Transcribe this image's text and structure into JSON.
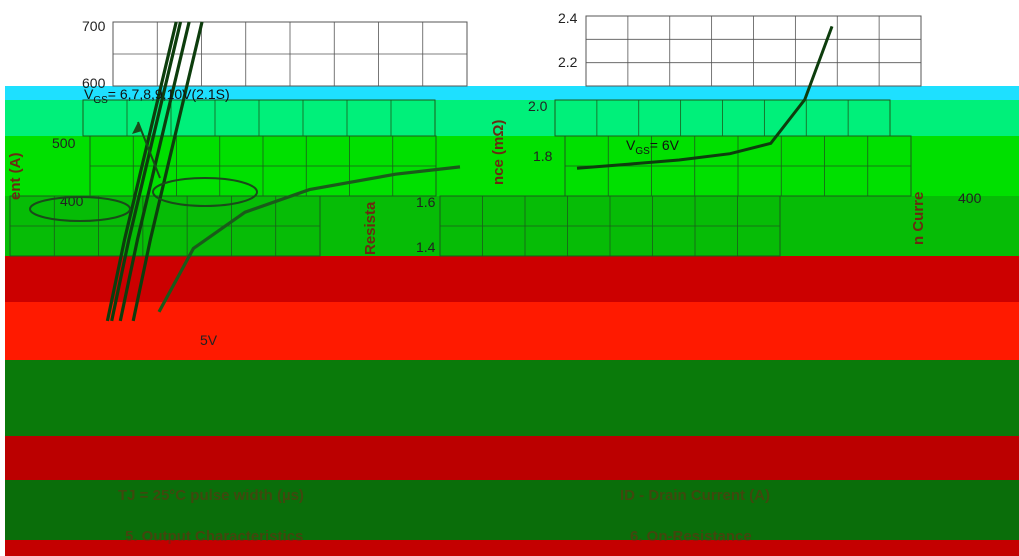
{
  "bands": [
    {
      "color": "#1ee0ff"
    },
    {
      "color": "#00f07a"
    },
    {
      "color": "#00e000"
    },
    {
      "color": "#06bc06"
    },
    {
      "color": "#cc0000"
    },
    {
      "color": "#ff1a00"
    },
    {
      "color": "#0a7a0a"
    },
    {
      "color": "#bb0000"
    },
    {
      "color": "#0a6e0a"
    },
    {
      "color": "#c40000"
    }
  ],
  "chart_data": [
    {
      "type": "line",
      "ytick_labels": [
        "700",
        "600",
        "500",
        "400"
      ],
      "yaxis_fragment": "ent (A)",
      "annotation": {
        "text_main": "V",
        "text_sub": "GS",
        "text_rest": "= 6,7,8,9,10V(2.1S)"
      },
      "xtick_fragment": "5V",
      "series": [
        {
          "x": [
            0.18,
            0.22,
            0.26,
            0.3,
            0.34
          ],
          "y": [
            390,
            480,
            560,
            640,
            720
          ]
        },
        {
          "x": [
            0.19,
            0.23,
            0.27,
            0.31,
            0.35
          ],
          "y": [
            390,
            480,
            560,
            640,
            720
          ]
        },
        {
          "x": [
            0.21,
            0.25,
            0.29,
            0.33,
            0.37
          ],
          "y": [
            390,
            480,
            560,
            640,
            720
          ]
        },
        {
          "x": [
            0.24,
            0.28,
            0.32,
            0.36,
            0.4
          ],
          "y": [
            390,
            480,
            560,
            640,
            720
          ]
        },
        {
          "x": [
            0.3,
            0.38,
            0.5,
            0.65,
            0.85,
            1.0
          ],
          "y": [
            400,
            470,
            510,
            535,
            552,
            560
          ]
        }
      ],
      "ylim": [
        380,
        720
      ]
    },
    {
      "type": "line",
      "ytick_labels": [
        "2.4",
        "2.2",
        "2.0",
        "1.8",
        "1.6",
        "1.4"
      ],
      "yaxis_fragment_1": "Resista",
      "yaxis_fragment_2": "nce (mΩ)",
      "annotation": {
        "text_main": "V",
        "text_sub": "GS",
        "text_rest": "= 6V"
      },
      "series": [
        {
          "x": [
            0.05,
            0.2,
            0.35,
            0.5,
            0.62,
            0.72,
            0.8
          ],
          "y": [
            1.72,
            1.74,
            1.76,
            1.79,
            1.84,
            2.05,
            2.4
          ]
        }
      ],
      "ylim": [
        1.3,
        2.45
      ]
    }
  ],
  "right_fragments": {
    "axis": "n Curre",
    "tick": "400"
  },
  "captions": {
    "left": "5. Output Characteristics",
    "right": "6. On-Resistance",
    "row_left": "TJ = 25°C pulse width (µs)",
    "row_right": "ID - Drain Current (A)"
  }
}
